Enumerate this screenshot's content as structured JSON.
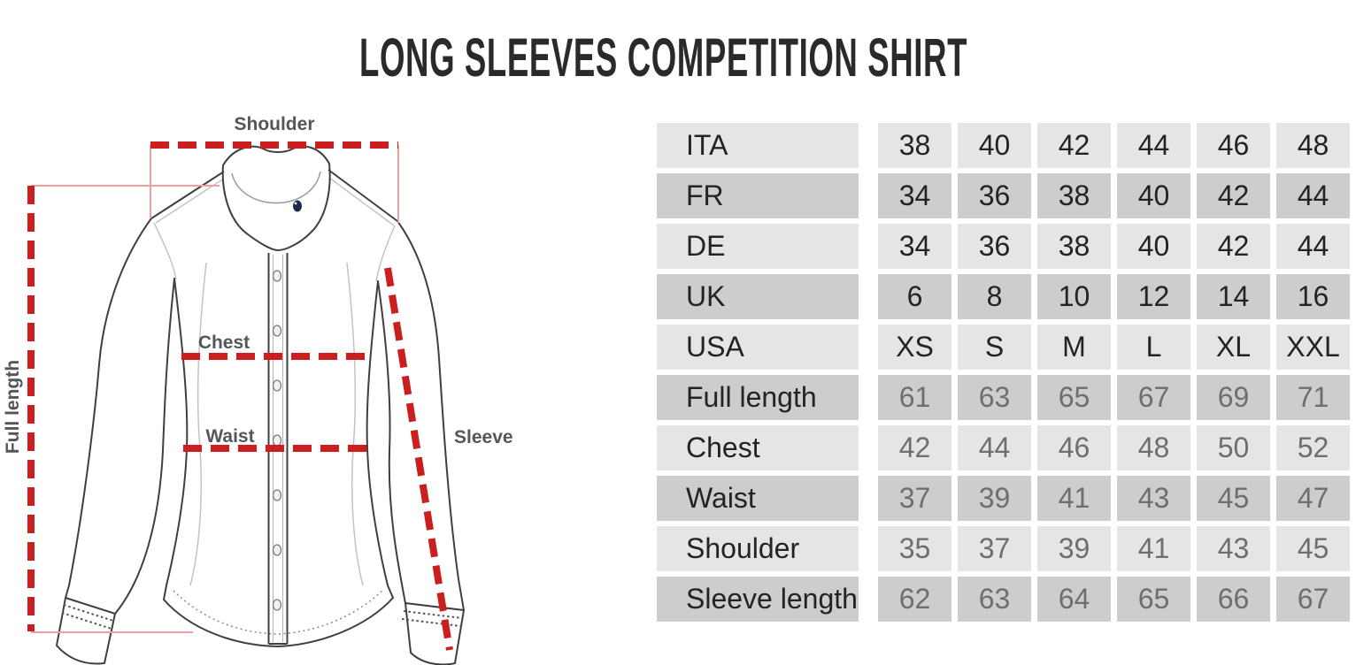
{
  "title": "LONG SLEEVES COMPETITION SHIRT",
  "diagram": {
    "labels": {
      "shoulder": "Shoulder",
      "full_length": "Full length",
      "chest": "Chest",
      "waist": "Waist",
      "sleeve": "Sleeve"
    },
    "colors": {
      "measure_line_red": "#cb1f1f",
      "guide_line_pink": "#ef9f9f",
      "outline_gray": "#3f3f41",
      "seam_light_gray": "#c3c3c3",
      "label_gray": "#53575b",
      "collar_button_navy": "#1c2b4d"
    }
  },
  "size_table": {
    "row_light_color": "#e5e5e6",
    "row_dark_color": "#cdcdcf",
    "value_dark_color": "#232326",
    "value_muted_color": "#6e6e70",
    "rows": [
      {
        "label": "ITA",
        "values": [
          "38",
          "40",
          "42",
          "44",
          "46",
          "48"
        ],
        "muted": false
      },
      {
        "label": "FR",
        "values": [
          "34",
          "36",
          "38",
          "40",
          "42",
          "44"
        ],
        "muted": false
      },
      {
        "label": "DE",
        "values": [
          "34",
          "36",
          "38",
          "40",
          "42",
          "44"
        ],
        "muted": false
      },
      {
        "label": "UK",
        "values": [
          "6",
          "8",
          "10",
          "12",
          "14",
          "16"
        ],
        "muted": false
      },
      {
        "label": "USA",
        "values": [
          "XS",
          "S",
          "M",
          "L",
          "XL",
          "XXL"
        ],
        "muted": false
      },
      {
        "label": "Full length",
        "values": [
          "61",
          "63",
          "65",
          "67",
          "69",
          "71"
        ],
        "muted": true
      },
      {
        "label": "Chest",
        "values": [
          "42",
          "44",
          "46",
          "48",
          "50",
          "52"
        ],
        "muted": true
      },
      {
        "label": "Waist",
        "values": [
          "37",
          "39",
          "41",
          "43",
          "45",
          "47"
        ],
        "muted": true
      },
      {
        "label": "Shoulder",
        "values": [
          "35",
          "37",
          "39",
          "41",
          "43",
          "45"
        ],
        "muted": true
      },
      {
        "label": "Sleeve length",
        "values": [
          "62",
          "63",
          "64",
          "65",
          "66",
          "67"
        ],
        "muted": true
      }
    ]
  }
}
